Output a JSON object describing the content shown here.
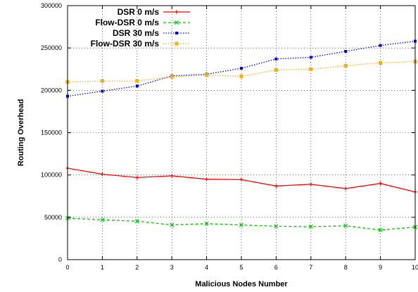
{
  "chart_data": {
    "type": "line",
    "title": "",
    "xlabel": "Malicious Nodes Number",
    "ylabel": "Routing Overhead",
    "x": [
      0,
      1,
      2,
      3,
      4,
      5,
      6,
      7,
      8,
      9,
      10
    ],
    "xlim": [
      0,
      10
    ],
    "ylim": [
      0,
      300000
    ],
    "xticks": [
      "0",
      "1",
      "2",
      "3",
      "4",
      "5",
      "6",
      "7",
      "8",
      "9",
      "10"
    ],
    "yticks": [
      "0",
      "50000",
      "100000",
      "150000",
      "200000",
      "250000",
      "300000"
    ],
    "grid": true,
    "legend_position": "top-left",
    "series": [
      {
        "name": "DSR 0 m/s",
        "color": "#ff0000",
        "dash": "solid",
        "marker": "plus",
        "values": [
          108000,
          101000,
          97000,
          99000,
          95000,
          94500,
          87000,
          89000,
          84000,
          90000,
          80000
        ]
      },
      {
        "name": "Flow-DSR 0 m/s",
        "color": "#00c800",
        "dash": "dashed",
        "marker": "cross",
        "values": [
          49000,
          47000,
          45500,
          41000,
          42500,
          41000,
          39500,
          39000,
          40000,
          35000,
          38500
        ]
      },
      {
        "name": "DSR 30 m/s",
        "color": "#0000dd",
        "dash": "dotted",
        "marker": "square",
        "values": [
          193000,
          199000,
          205000,
          217000,
          219000,
          226000,
          237000,
          239000,
          246000,
          253000,
          258000
        ]
      },
      {
        "name": "Flow-DSR 30 m/s",
        "color": "#f0b020",
        "dash": "dotted",
        "marker": "filled-square",
        "values": [
          210000,
          211000,
          211000,
          216000,
          218000,
          216500,
          224000,
          225000,
          229000,
          232500,
          234000
        ]
      }
    ]
  }
}
